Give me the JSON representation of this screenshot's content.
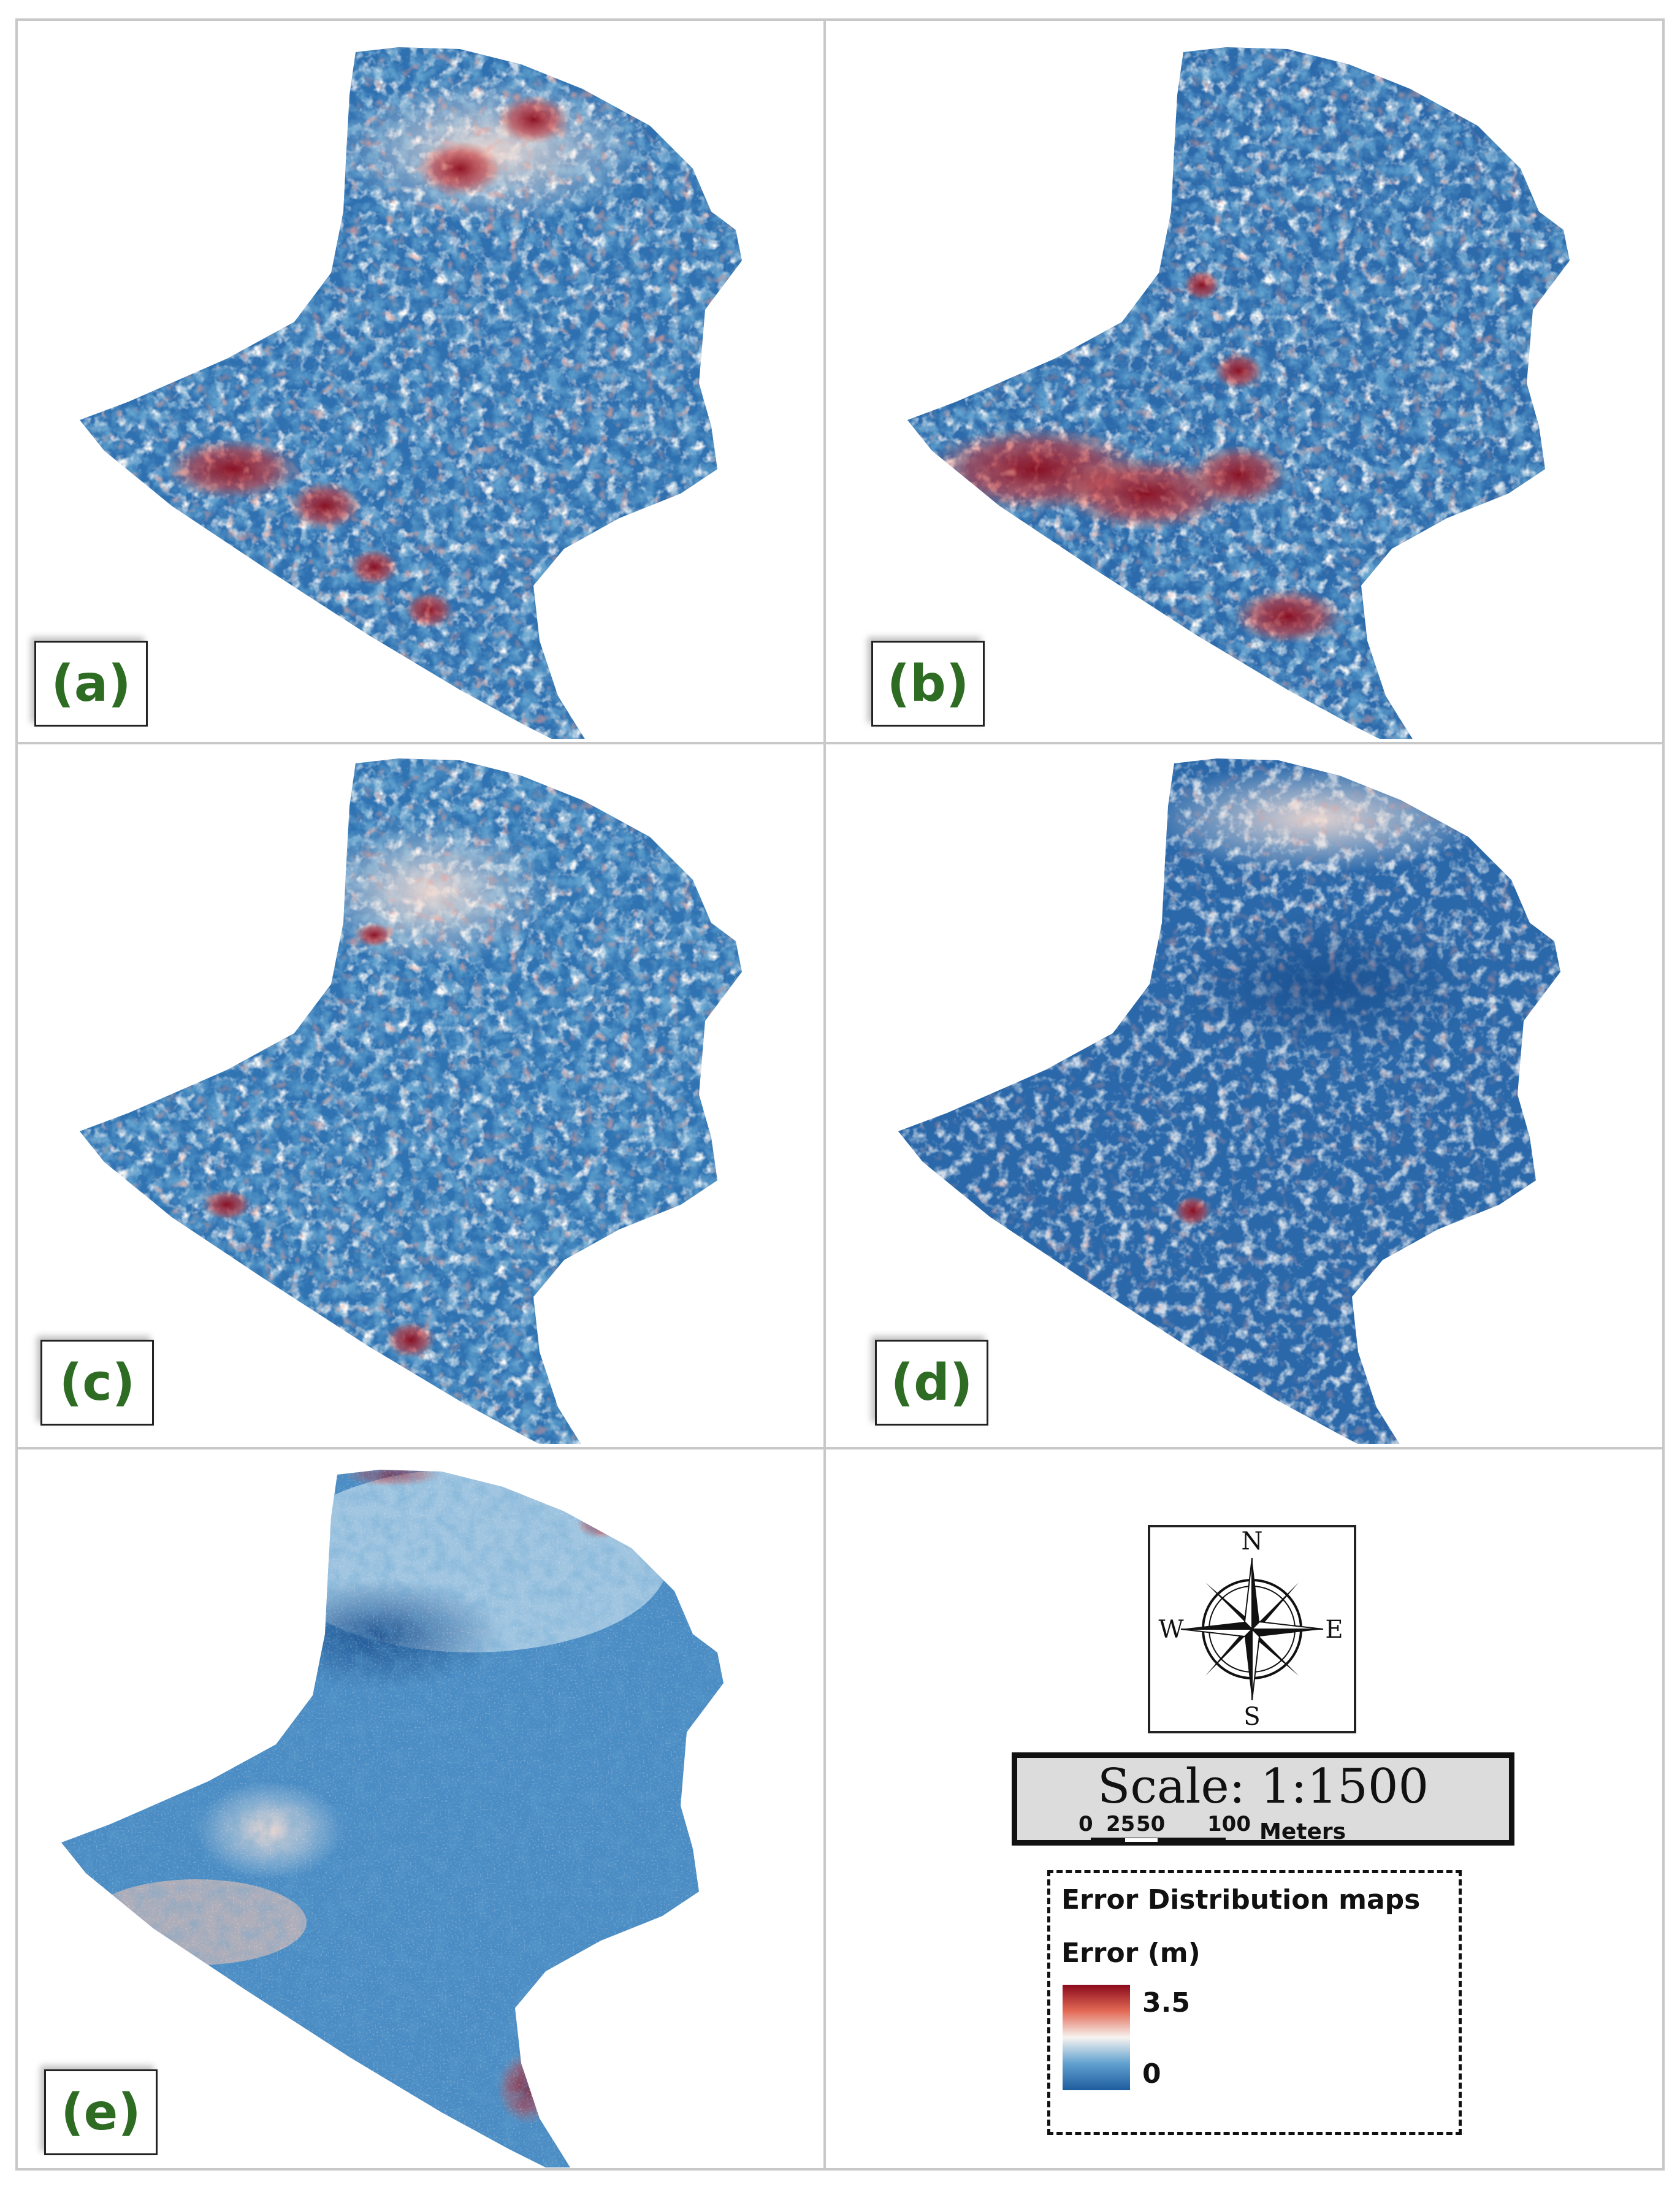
{
  "panels": [
    {
      "label": "(a)"
    },
    {
      "label": "(b)"
    },
    {
      "label": "(c)"
    },
    {
      "label": "(d)"
    },
    {
      "label": "(e)"
    }
  ],
  "compass": {
    "north": "N",
    "south": "S",
    "east": "E",
    "west": "W"
  },
  "scale": {
    "title": "Scale: 1:1500",
    "ticks": [
      "0",
      "25",
      "50",
      "100"
    ],
    "units": "Meters"
  },
  "legend": {
    "title": "Error Distribution maps",
    "variable": "Error (m)",
    "max": "3.5",
    "min": "0",
    "colors": {
      "high": "#8b0a1c",
      "mid": "#f6f3f0",
      "low": "#1e5c9e"
    }
  }
}
